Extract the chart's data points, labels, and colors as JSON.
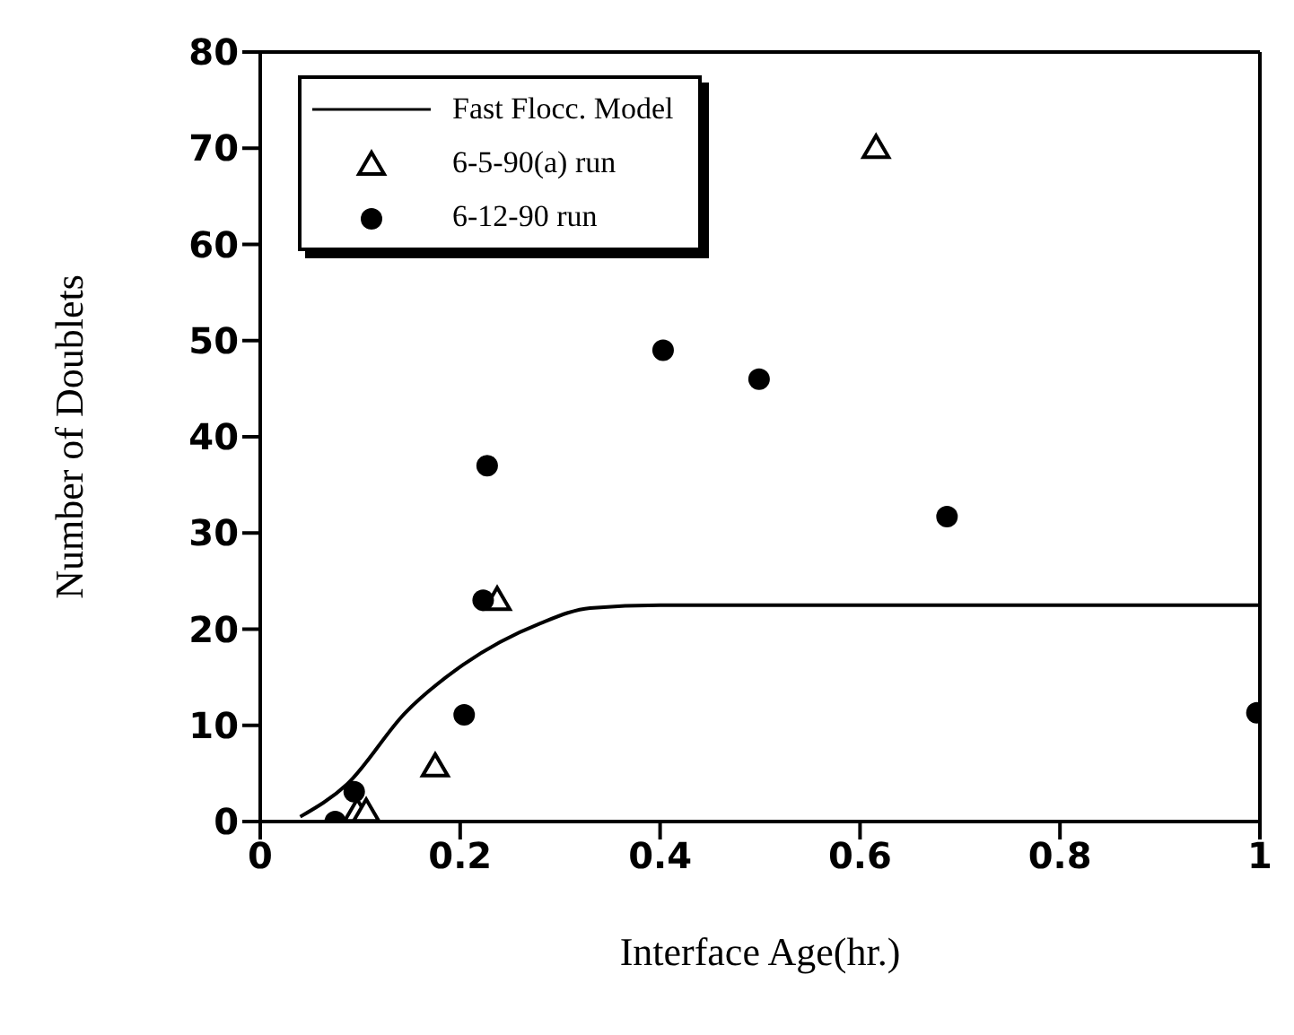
{
  "chart_data": {
    "type": "scatter",
    "xlabel": "Interface Age(hr.)",
    "ylabel": "Number of Doublets",
    "xlim": [
      0,
      1
    ],
    "xticks": [
      0,
      0.2,
      0.4,
      0.6,
      0.8,
      1
    ],
    "ylim": [
      0,
      80
    ],
    "yticks": [
      0,
      10,
      20,
      30,
      40,
      50,
      60,
      70,
      80
    ],
    "legend": "top left",
    "series": [
      {
        "name": "Fast Flocc. Model",
        "type": "line",
        "marker": "none",
        "line_style": "solid",
        "color": "#000000",
        "x": [
          0.04,
          0.087,
          0.145,
          0.203,
          0.28,
          0.33,
          0.4,
          0.6,
          0.8,
          1.0
        ],
        "values": [
          0.5,
          3.9,
          11.3,
          16.3,
          20.6,
          22.2,
          22.5,
          22.5,
          22.5,
          22.5
        ]
      },
      {
        "name": "6-5-90(a) run",
        "marker": "triangle",
        "color": "#000000",
        "x": [
          0.097,
          0.106,
          0.175,
          0.237,
          0.616
        ],
        "values": [
          1,
          1,
          5.7,
          23,
          70
        ]
      },
      {
        "name": "6-12-90 run",
        "marker": "circle",
        "color": "#000000",
        "x": [
          0.075,
          0.094,
          0.204,
          0.223,
          0.227,
          0.403,
          0.499,
          0.687,
          0.997
        ],
        "values": [
          0,
          3.1,
          11.1,
          23,
          37,
          49,
          46,
          31.7,
          11.3
        ]
      }
    ]
  }
}
